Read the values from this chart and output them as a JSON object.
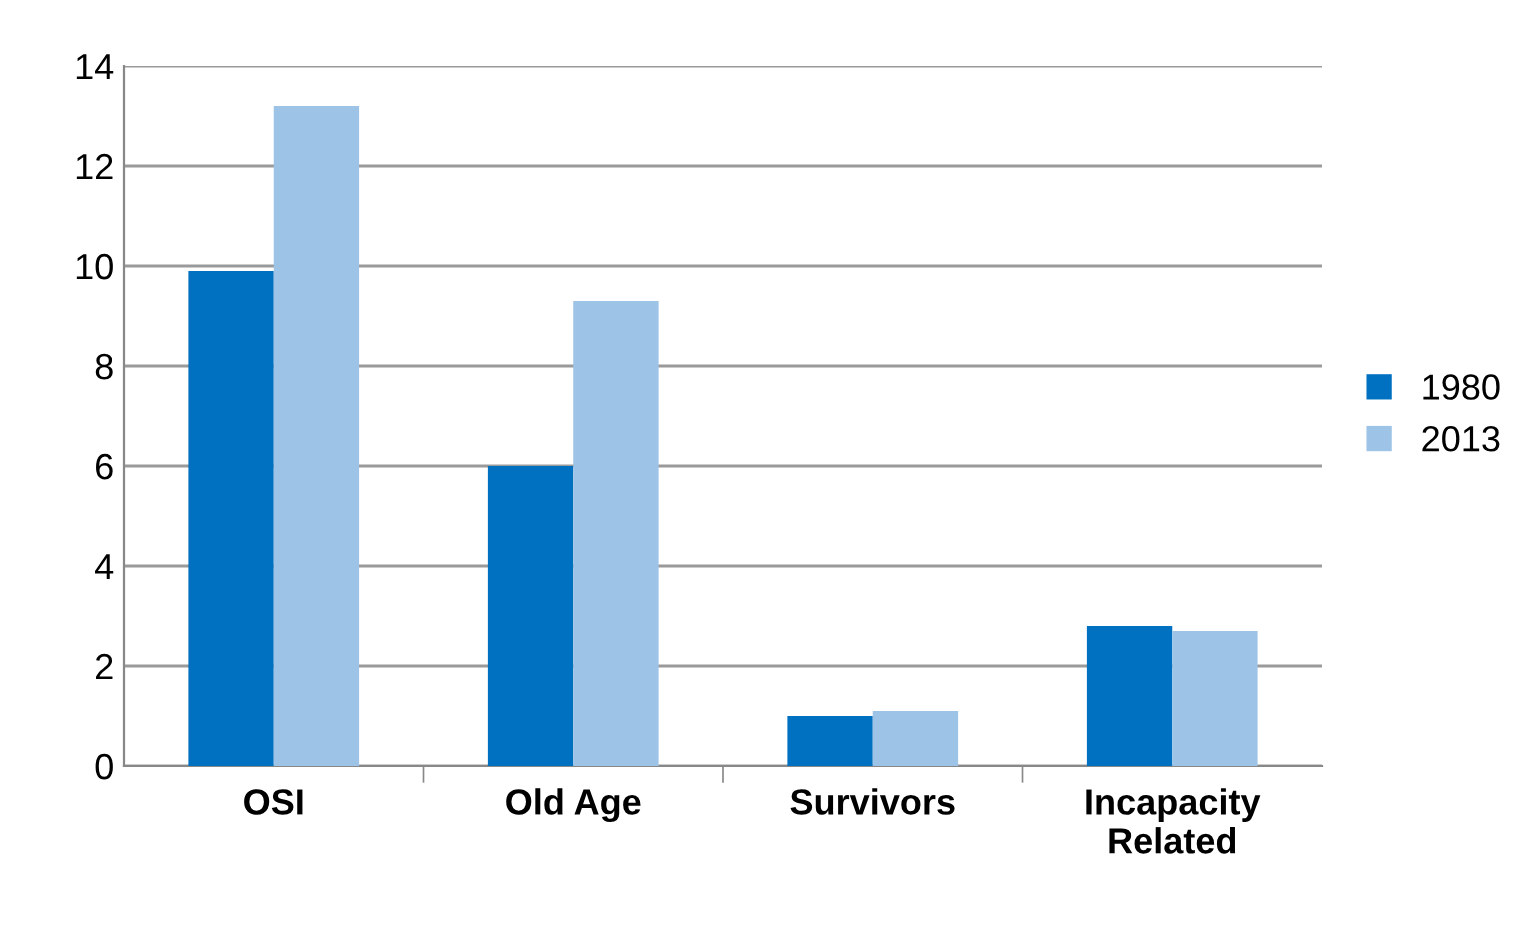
{
  "chart_data": {
    "type": "bar",
    "categories": [
      "OSI",
      "Old Age",
      "Survivors",
      "Incapacity\nRelated"
    ],
    "series": [
      {
        "name": "1980",
        "color": "#0070c0",
        "values": [
          9.9,
          6.0,
          1.0,
          2.8
        ]
      },
      {
        "name": "2013",
        "color": "#9dc3e6",
        "values": [
          13.2,
          9.3,
          1.1,
          2.7
        ]
      }
    ],
    "ylim": [
      0,
      14
    ],
    "yticks": [
      0,
      2,
      4,
      6,
      8,
      10,
      12,
      14
    ],
    "grid": "y",
    "legend": "right"
  }
}
